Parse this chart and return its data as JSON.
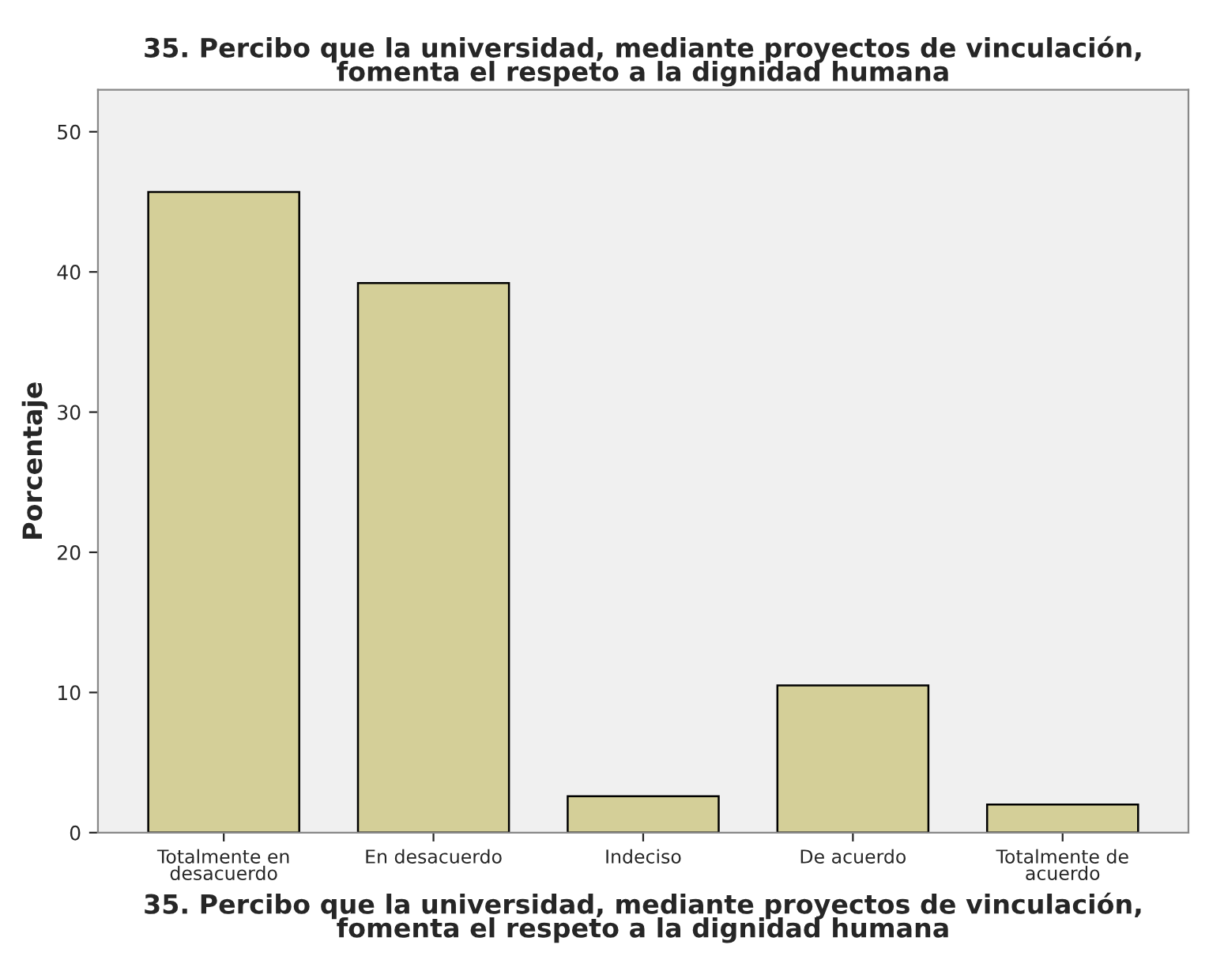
{
  "chart_data": {
    "type": "bar",
    "title": "35. Percibo que la universidad, mediante proyectos de vinculación,\nfomenta el respeto a la dignidad humana",
    "xlabel": "35. Percibo que la universidad, mediante proyectos de vinculación,\nfomenta el respeto a la dignidad humana",
    "ylabel": "Porcentaje",
    "categories": [
      "Totalmente en\ndesacuerdo",
      "En desacuerdo",
      "Indeciso",
      "De acuerdo",
      "Totalmente de\nacuerdo"
    ],
    "values": [
      45.7,
      39.2,
      2.6,
      10.5,
      2.0
    ],
    "color": "#d4cf98",
    "ylim": [
      0,
      53
    ],
    "yticks": [
      0,
      10,
      20,
      30,
      40,
      50
    ],
    "grid": false
  }
}
